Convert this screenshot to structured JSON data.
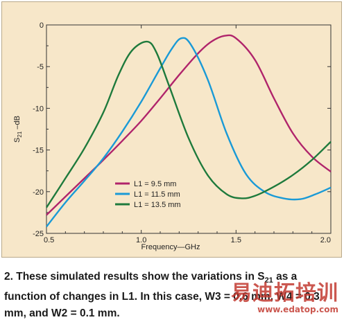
{
  "chart_data": {
    "type": "line",
    "xlabel": "Frequency—GHz",
    "ylabel_main": "S",
    "ylabel_sub": "21",
    "ylabel_unit": " –dB",
    "xlim": [
      0.5,
      2.0
    ],
    "ylim": [
      -25,
      0
    ],
    "x_ticks": [
      "0.5",
      "1.0",
      "1.5",
      "2.0"
    ],
    "y_ticks": [
      "0",
      "-5",
      "-10",
      "-15",
      "-20",
      "-25"
    ],
    "grid": false,
    "legend_position": "lower-center",
    "series": [
      {
        "name": "L1 = 9.5 mm",
        "color": "#b0246b",
        "points": [
          [
            0.5,
            -22.8
          ],
          [
            0.6,
            -20.6
          ],
          [
            0.7,
            -18.4
          ],
          [
            0.8,
            -16.2
          ],
          [
            0.9,
            -13.9
          ],
          [
            1.0,
            -11.5
          ],
          [
            1.1,
            -8.8
          ],
          [
            1.2,
            -6.0
          ],
          [
            1.3,
            -3.4
          ],
          [
            1.37,
            -2.0
          ],
          [
            1.44,
            -1.3
          ],
          [
            1.5,
            -1.6
          ],
          [
            1.6,
            -4.2
          ],
          [
            1.7,
            -8.8
          ],
          [
            1.8,
            -13.0
          ],
          [
            1.9,
            -15.8
          ],
          [
            2.0,
            -17.6
          ]
        ]
      },
      {
        "name": "L1 = 11.5 mm",
        "color": "#1a9ad6",
        "points": [
          [
            0.5,
            -24.2
          ],
          [
            0.6,
            -21.3
          ],
          [
            0.7,
            -18.7
          ],
          [
            0.8,
            -16.0
          ],
          [
            0.9,
            -12.8
          ],
          [
            1.0,
            -9.2
          ],
          [
            1.1,
            -5.2
          ],
          [
            1.16,
            -2.9
          ],
          [
            1.21,
            -1.6
          ],
          [
            1.26,
            -2.3
          ],
          [
            1.35,
            -6.5
          ],
          [
            1.45,
            -13.0
          ],
          [
            1.55,
            -17.8
          ],
          [
            1.65,
            -20.0
          ],
          [
            1.75,
            -20.8
          ],
          [
            1.84,
            -20.9
          ],
          [
            1.92,
            -20.3
          ],
          [
            2.0,
            -19.5
          ]
        ]
      },
      {
        "name": "L1 = 13.5 mm",
        "color": "#1e7a3c",
        "points": [
          [
            0.5,
            -21.9
          ],
          [
            0.6,
            -18.4
          ],
          [
            0.7,
            -14.8
          ],
          [
            0.8,
            -10.5
          ],
          [
            0.88,
            -6.0
          ],
          [
            0.95,
            -3.1
          ],
          [
            1.03,
            -2.0
          ],
          [
            1.08,
            -3.3
          ],
          [
            1.15,
            -7.5
          ],
          [
            1.25,
            -13.6
          ],
          [
            1.35,
            -18.0
          ],
          [
            1.45,
            -20.3
          ],
          [
            1.53,
            -20.8
          ],
          [
            1.6,
            -20.5
          ],
          [
            1.7,
            -19.4
          ],
          [
            1.8,
            -18.0
          ],
          [
            1.9,
            -16.2
          ],
          [
            2.0,
            -14.0
          ]
        ]
      }
    ]
  },
  "caption": {
    "part1": "2. These simulated results show the variations in S",
    "sub": "21",
    "part2": " as a function of changes in L1. In this case, W3 = 0.6 mm, W4 = 0.3 mm, and W2 = 0.1 mm."
  },
  "watermark": {
    "cn": "易迪拓培训",
    "url": "www.edatop.com"
  }
}
